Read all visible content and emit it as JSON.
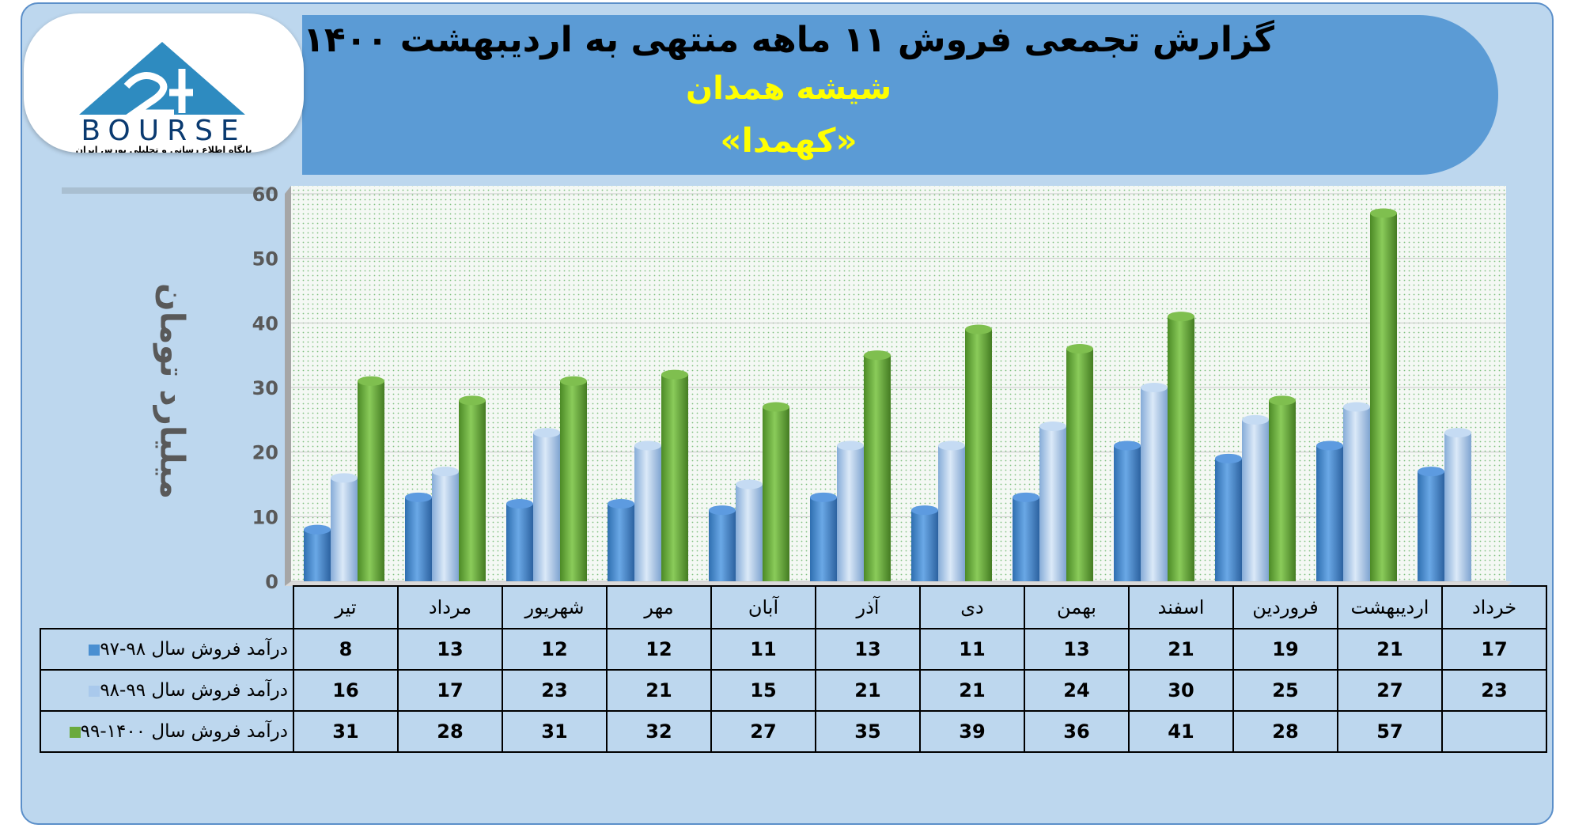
{
  "header": {
    "title": "گزارش تجمعی فروش ۱۱ ماهه منتهی به اردیبهشت ۱۴۰۰",
    "company": "شیشه همدان",
    "symbol": "«کهمدا»",
    "logo_text": "BOURSE",
    "logo_subtitle": "پایگاه اطلاع رسانی و تحلیلی بورس ایران"
  },
  "colors": {
    "series1": "#4a8fd1",
    "series2": "#a9c9ec",
    "series3": "#6aaa3c",
    "banner": "#5b9bd5",
    "background": "#bdd7ee"
  },
  "chart_data": {
    "type": "bar",
    "ylabel": "میلیارد تومان",
    "ylim": [
      0,
      60
    ],
    "yticks": [
      0,
      10,
      20,
      30,
      40,
      50,
      60
    ],
    "categories": [
      "تیر",
      "مرداد",
      "شهریور",
      "مهر",
      "آبان",
      "آذر",
      "دی",
      "بهمن",
      "اسفند",
      "فروردین",
      "اردیبهشت",
      "خرداد"
    ],
    "series": [
      {
        "name": "درآمد فروش سال ۹۸-۹۷",
        "values": [
          8,
          13,
          12,
          12,
          11,
          13,
          11,
          13,
          21,
          19,
          21,
          17
        ]
      },
      {
        "name": "درآمد فروش سال ۹۹-۹۸",
        "values": [
          16,
          17,
          23,
          21,
          15,
          21,
          21,
          24,
          30,
          25,
          27,
          23
        ]
      },
      {
        "name": "درآمد فروش سال ۱۴۰۰-۹۹",
        "values": [
          31,
          28,
          31,
          32,
          27,
          35,
          39,
          36,
          41,
          28,
          57,
          null
        ]
      }
    ],
    "grid": true,
    "legend": "table-left"
  }
}
